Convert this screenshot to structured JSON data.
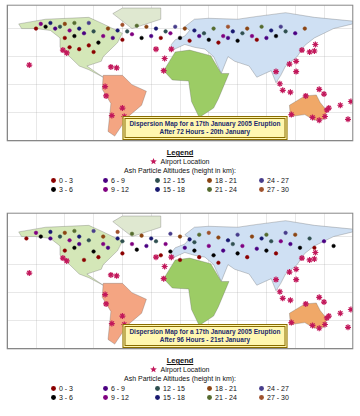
{
  "chart_data": [
    {
      "type": "scatter",
      "title": "Dispersion Map for a 17th January 2005 Eruption",
      "subtitle": "After 72 Hours - 20th January",
      "legend_title": "Legend",
      "legend_note": "Ash Particle Altitudes (height in km):",
      "legend": "bottom",
      "grid": true,
      "tick_labels": false,
      "xlim": [
        -180,
        180
      ],
      "ylim": [
        -60,
        85
      ],
      "xticks": [
        -180,
        -150,
        -120,
        -90,
        -60,
        -30,
        0,
        30,
        60,
        90,
        120,
        150,
        180
      ],
      "yticks": [
        -60,
        -30,
        0,
        30,
        60
      ],
      "regions": [
        {
          "color": "#d4e7b8",
          "x": [
            -168,
            -140,
            -95,
            -80,
            -60,
            -65,
            -80,
            -82,
            -97,
            -90,
            -80,
            -95,
            -105,
            -117,
            -125,
            -125,
            -135,
            -150,
            -165
          ],
          "y": [
            65,
            70,
            72,
            65,
            55,
            45,
            30,
            25,
            20,
            15,
            8,
            16,
            20,
            32,
            40,
            50,
            58,
            60,
            60
          ]
        },
        {
          "color": "#dfe8d0",
          "x": [
            -50,
            -20,
            -20,
            -60,
            -70
          ],
          "y": [
            60,
            70,
            82,
            82,
            76
          ]
        },
        {
          "color": "#f4a582",
          "x": [
            -80,
            -60,
            -50,
            -35,
            -40,
            -55,
            -68,
            -75,
            -72,
            -81
          ],
          "y": [
            10,
            10,
            0,
            -7,
            -22,
            -35,
            -55,
            -50,
            -20,
            -5
          ]
        },
        {
          "color": "#cfe0f3",
          "x": [
            -10,
            -9,
            -5,
            5,
            10,
            5,
            15,
            30,
            60,
            80,
            110,
            140,
            180,
            180,
            160,
            140,
            130,
            122,
            110,
            105,
            100,
            95,
            80,
            72,
            57,
            50,
            43,
            35,
            26,
            15,
            5
          ],
          "y": [
            36,
            43,
            48,
            52,
            58,
            62,
            70,
            71,
            70,
            73,
            77,
            72,
            68,
            65,
            60,
            50,
            42,
            30,
            20,
            10,
            2,
            15,
            8,
            20,
            25,
            30,
            12,
            30,
            38,
            40,
            43
          ]
        },
        {
          "color": "#9ccc65",
          "x": [
            -17,
            -5,
            10,
            32,
            43,
            51,
            40,
            35,
            20,
            12,
            9,
            -8
          ],
          "y": [
            15,
            35,
            37,
            31,
            12,
            12,
            -15,
            -25,
            -35,
            -18,
            4,
            5
          ]
        },
        {
          "color": "#f0a868",
          "x": [
            114,
            130,
            142,
            146,
            153,
            150,
            140,
            130,
            115
          ],
          "y": [
            -22,
            -12,
            -11,
            -19,
            -28,
            -37,
            -38,
            -32,
            -34
          ]
        }
      ],
      "series": [
        {
          "name": "Airport Location",
          "color": "#c2185b",
          "marker": "star",
          "x": [
            -78,
            -77,
            -71,
            -60,
            -58,
            -157,
            -122,
            -118,
            -72,
            -66,
            -16,
            -25,
            -9,
            -17,
            100,
            104,
            107,
            115,
            121,
            121,
            114,
            127,
            135,
            140,
            141,
            145,
            150,
            155,
            175,
            178,
            167,
            131,
            116,
            151,
            145,
            138,
            153
          ],
          "y": [
            -2,
            -12,
            -33,
            -25,
            -34,
            21,
            37,
            34,
            19,
            18,
            28,
            38,
            38,
            15,
            14,
            1,
            -6,
            -8,
            14,
            25,
            22,
            37,
            35,
            36,
            43,
            -5,
            -10,
            -25,
            -37,
            -18,
            -22,
            -12,
            -32,
            -34,
            -38,
            -35,
            -27
          ]
        },
        {
          "name": "0 - 3",
          "color": "#8b0000",
          "marker": "circle",
          "x": [
            -150,
            -120,
            -95,
            -60,
            -20,
            10,
            40,
            80,
            -105,
            -90,
            -115
          ],
          "y": [
            60,
            50,
            42,
            48,
            50,
            47,
            45,
            48,
            38,
            35,
            40
          ]
        },
        {
          "name": "3 - 6",
          "color": "#000000",
          "marker": "circle",
          "x": [
            -140,
            -110,
            -85,
            -40,
            0,
            30,
            60,
            100
          ],
          "y": [
            62,
            52,
            45,
            50,
            50,
            48,
            47,
            52
          ]
        },
        {
          "name": "6 - 9",
          "color": "#4b0082",
          "marker": "circle",
          "x": [
            -130,
            -100,
            -70,
            -30,
            20,
            50,
            90,
            120
          ],
          "y": [
            60,
            55,
            50,
            52,
            52,
            50,
            50,
            55
          ]
        },
        {
          "name": "9 - 12",
          "color": "#800080",
          "marker": "circle",
          "x": [
            -145,
            -115,
            -80,
            -50,
            -10,
            45,
            75
          ],
          "y": [
            65,
            58,
            52,
            54,
            55,
            52,
            52
          ]
        },
        {
          "name": "12 - 15",
          "color": "#2f4f4f",
          "marker": "circle",
          "x": [
            -125,
            -90,
            -55,
            -15,
            25,
            65,
            110
          ],
          "y": [
            62,
            57,
            57,
            57,
            55,
            55,
            57
          ]
        },
        {
          "name": "15 - 18",
          "color": "#191970",
          "marker": "circle",
          "x": [
            -135,
            -105,
            -65,
            -25,
            15,
            55,
            95
          ],
          "y": [
            66,
            60,
            58,
            60,
            58,
            57,
            58
          ]
        },
        {
          "name": "18 - 21",
          "color": "#8b4513",
          "marker": "circle",
          "x": [
            -120,
            -75,
            -35,
            5,
            70,
            130
          ],
          "y": [
            65,
            60,
            62,
            60,
            60,
            60
          ]
        },
        {
          "name": "21 - 24",
          "color": "#556b2f",
          "marker": "circle",
          "x": [
            -110,
            -45,
            35,
            85
          ],
          "y": [
            66,
            63,
            60,
            62
          ]
        },
        {
          "name": "24 - 27",
          "color": "#483d8b",
          "marker": "circle",
          "x": [
            -95,
            -5,
            105
          ],
          "y": [
            66,
            62,
            62
          ]
        },
        {
          "name": "27 - 30",
          "color": "#a0522d",
          "marker": "circle",
          "x": [
            -60,
            50
          ],
          "y": [
            64,
            62
          ]
        }
      ]
    },
    {
      "type": "scatter",
      "title": "Dispersion Map for a 17th January 2005 Eruption",
      "subtitle": "After 96 Hours - 21st January",
      "legend_title": "Legend",
      "legend_note": "Ash Particle Altitudes (height in km):",
      "legend": "bottom",
      "grid": true,
      "tick_labels": false,
      "xlim": [
        -180,
        180
      ],
      "ylim": [
        -60,
        85
      ],
      "xticks": [
        -180,
        -150,
        -120,
        -90,
        -60,
        -30,
        0,
        30,
        60,
        90,
        120,
        150,
        180
      ],
      "yticks": [
        -60,
        -30,
        0,
        30,
        60
      ],
      "regions": [
        {
          "color": "#d4e7b8",
          "x": [
            -168,
            -140,
            -95,
            -80,
            -60,
            -65,
            -80,
            -82,
            -97,
            -90,
            -80,
            -95,
            -105,
            -117,
            -125,
            -125,
            -135,
            -150,
            -165
          ],
          "y": [
            65,
            70,
            72,
            65,
            55,
            45,
            30,
            25,
            20,
            15,
            8,
            16,
            20,
            32,
            40,
            50,
            58,
            60,
            60
          ]
        },
        {
          "color": "#dfe8d0",
          "x": [
            -50,
            -20,
            -20,
            -60,
            -70
          ],
          "y": [
            60,
            70,
            82,
            82,
            76
          ]
        },
        {
          "color": "#f4a582",
          "x": [
            -80,
            -60,
            -50,
            -35,
            -40,
            -55,
            -68,
            -75,
            -72,
            -81
          ],
          "y": [
            10,
            10,
            0,
            -7,
            -22,
            -35,
            -55,
            -50,
            -20,
            -5
          ]
        },
        {
          "color": "#cfe0f3",
          "x": [
            -10,
            -9,
            -5,
            5,
            10,
            5,
            15,
            30,
            60,
            80,
            110,
            140,
            180,
            180,
            160,
            140,
            130,
            122,
            110,
            105,
            100,
            95,
            80,
            72,
            57,
            50,
            43,
            35,
            26,
            15,
            5
          ],
          "y": [
            36,
            43,
            48,
            52,
            58,
            62,
            70,
            71,
            70,
            73,
            77,
            72,
            68,
            65,
            60,
            50,
            42,
            30,
            20,
            10,
            2,
            15,
            8,
            20,
            25,
            30,
            12,
            30,
            38,
            40,
            43
          ]
        },
        {
          "color": "#9ccc65",
          "x": [
            -17,
            -5,
            10,
            32,
            43,
            51,
            40,
            35,
            20,
            12,
            9,
            -8
          ],
          "y": [
            15,
            35,
            37,
            31,
            12,
            12,
            -15,
            -25,
            -35,
            -18,
            4,
            5
          ]
        },
        {
          "color": "#f0a868",
          "x": [
            114,
            130,
            142,
            146,
            153,
            150,
            140,
            130,
            115
          ],
          "y": [
            -22,
            -12,
            -11,
            -19,
            -28,
            -37,
            -38,
            -32,
            -34
          ]
        }
      ],
      "series": [
        {
          "name": "Airport Location",
          "color": "#c2185b",
          "marker": "star",
          "x": [
            -78,
            -77,
            -71,
            -60,
            -58,
            -157,
            -122,
            -118,
            -72,
            -66,
            -16,
            -25,
            -9,
            -17,
            100,
            104,
            107,
            115,
            121,
            121,
            114,
            127,
            135,
            140,
            141,
            145,
            150,
            155,
            175,
            178,
            167,
            131,
            116,
            151,
            145,
            138,
            153
          ],
          "y": [
            -2,
            -12,
            -33,
            -25,
            -34,
            21,
            37,
            34,
            19,
            18,
            28,
            38,
            38,
            15,
            14,
            1,
            -6,
            -8,
            14,
            25,
            22,
            37,
            35,
            36,
            43,
            -5,
            -10,
            -25,
            -37,
            -18,
            -22,
            -12,
            -32,
            -34,
            -38,
            -35,
            -27
          ]
        },
        {
          "name": "0 - 3",
          "color": "#8b0000",
          "marker": "circle",
          "x": [
            -160,
            -120,
            -100,
            -85,
            -60,
            -20,
            0,
            20,
            40,
            70,
            100,
            140
          ],
          "y": [
            58,
            45,
            35,
            38,
            42,
            40,
            35,
            38,
            32,
            38,
            42,
            48
          ]
        },
        {
          "name": "3 - 6",
          "color": "#000000",
          "marker": "circle",
          "x": [
            -145,
            -110,
            -90,
            -45,
            -10,
            15,
            35,
            60,
            90,
            125,
            160
          ],
          "y": [
            60,
            48,
            44,
            46,
            44,
            45,
            40,
            42,
            45,
            48,
            50
          ]
        },
        {
          "name": "6 - 9",
          "color": "#4b0082",
          "marker": "circle",
          "x": [
            -135,
            -105,
            -75,
            -35,
            5,
            45,
            80,
            115,
            150
          ],
          "y": [
            58,
            52,
            48,
            50,
            48,
            45,
            47,
            52,
            55
          ]
        },
        {
          "name": "9 - 12",
          "color": "#800080",
          "marker": "circle",
          "x": [
            -150,
            -115,
            -80,
            -50,
            -15,
            30,
            65,
            105
          ],
          "y": [
            64,
            56,
            52,
            52,
            52,
            50,
            50,
            55
          ]
        },
        {
          "name": "12 - 15",
          "color": "#2f4f4f",
          "marker": "circle",
          "x": [
            -125,
            -95,
            -60,
            -25,
            15,
            55,
            95,
            135
          ],
          "y": [
            60,
            56,
            55,
            55,
            54,
            52,
            55,
            58
          ]
        },
        {
          "name": "15 - 18",
          "color": "#191970",
          "marker": "circle",
          "x": [
            -135,
            -105,
            -65,
            -30,
            10,
            50,
            85
          ],
          "y": [
            65,
            60,
            58,
            58,
            57,
            56,
            58
          ]
        },
        {
          "name": "18 - 21",
          "color": "#8b4513",
          "marker": "circle",
          "x": [
            -120,
            -80,
            -40,
            0,
            40,
            75,
            120
          ],
          "y": [
            64,
            60,
            61,
            60,
            59,
            60,
            62
          ]
        },
        {
          "name": "21 - 24",
          "color": "#556b2f",
          "marker": "circle",
          "x": [
            -110,
            -50,
            20,
            90
          ],
          "y": [
            66,
            63,
            62,
            62
          ]
        },
        {
          "name": "24 - 27",
          "color": "#483d8b",
          "marker": "circle",
          "x": [
            -90,
            -10,
            60,
            110
          ],
          "y": [
            66,
            63,
            62,
            64
          ]
        },
        {
          "name": "27 - 30",
          "color": "#a0522d",
          "marker": "circle",
          "x": [
            -65,
            30
          ],
          "y": [
            65,
            64
          ]
        }
      ]
    }
  ]
}
